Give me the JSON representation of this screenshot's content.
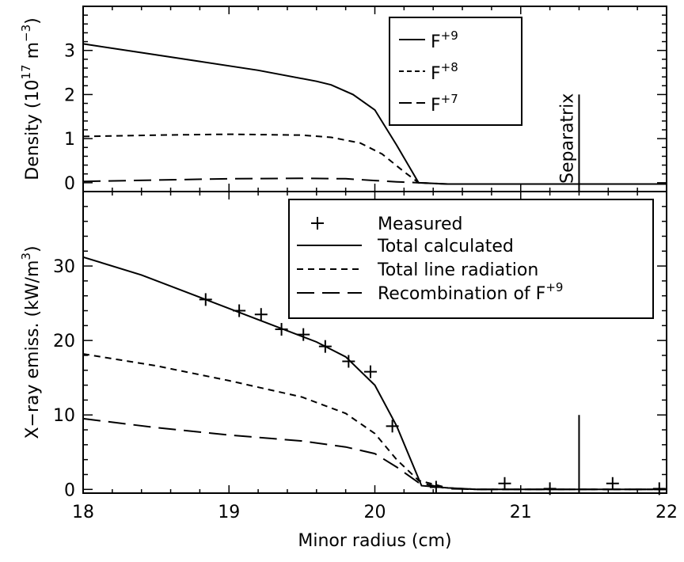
{
  "chart_data": [
    {
      "type": "line",
      "xlim": [
        18,
        22
      ],
      "ylim": [
        -0.2,
        4.0
      ],
      "x_ticks": [
        "18",
        "19",
        "20",
        "21",
        "22"
      ],
      "y_ticks": [
        "0",
        "1",
        "2",
        "3"
      ],
      "y_tick_values": [
        0,
        1,
        2,
        3
      ],
      "ylabel": "Density (10",
      "ylabel_sup": "17",
      "ylabel_unit": " m",
      "ylabel_unit_sup": "−3",
      "ylabel_close": ")",
      "legend_position": "top-right",
      "series": [
        {
          "name": "F",
          "name_sup": "+9",
          "style": "solid",
          "x": [
            18.0,
            18.4,
            18.8,
            19.2,
            19.6,
            19.7,
            19.85,
            20.0,
            20.15,
            20.3,
            20.5,
            21.0,
            22.0
          ],
          "y": [
            3.15,
            2.95,
            2.75,
            2.55,
            2.3,
            2.22,
            2.0,
            1.65,
            0.85,
            0.0,
            -0.03,
            -0.03,
            -0.03
          ]
        },
        {
          "name": "F",
          "name_sup": "+8",
          "style": "dashed",
          "x": [
            18.0,
            18.5,
            19.0,
            19.5,
            19.7,
            19.9,
            20.05,
            20.2,
            20.3,
            20.5,
            22.0
          ],
          "y": [
            1.05,
            1.08,
            1.1,
            1.08,
            1.03,
            0.9,
            0.65,
            0.25,
            0.0,
            -0.03,
            -0.03
          ]
        },
        {
          "name": "F",
          "name_sup": "+7",
          "style": "longdash",
          "x": [
            18.0,
            18.5,
            19.0,
            19.5,
            19.8,
            20.0,
            20.15,
            20.3,
            20.5,
            22.0
          ],
          "y": [
            0.03,
            0.06,
            0.09,
            0.1,
            0.09,
            0.05,
            0.02,
            0.0,
            -0.03,
            -0.03
          ]
        }
      ],
      "separatrix": {
        "x": 21.4,
        "y_top": 2.0,
        "label": "Separatrix"
      }
    },
    {
      "type": "line",
      "xlim": [
        18,
        22
      ],
      "ylim": [
        -0.5,
        40
      ],
      "x_ticks": [
        "18",
        "19",
        "20",
        "21",
        "22"
      ],
      "y_ticks": [
        "0",
        "10",
        "20",
        "30"
      ],
      "y_tick_values": [
        0,
        10,
        20,
        30
      ],
      "xlabel": "Minor radius (cm)",
      "ylabel": "X−ray emiss. (kW/m",
      "ylabel_sup": "3",
      "ylabel_close": ")",
      "legend_position": "top-right",
      "measured": {
        "name": "Measured",
        "x": [
          18.84,
          19.07,
          19.22,
          19.36,
          19.51,
          19.66,
          19.82,
          19.97,
          20.12,
          20.42,
          20.89,
          21.2,
          21.63,
          21.95
        ],
        "y": [
          25.5,
          24.0,
          23.5,
          21.5,
          20.8,
          19.2,
          17.2,
          15.8,
          8.5,
          0.3,
          0.8,
          0.1,
          0.8,
          0.1
        ]
      },
      "series": [
        {
          "name": "Total calculated",
          "style": "solid",
          "x": [
            18.0,
            18.4,
            18.8,
            19.2,
            19.6,
            19.8,
            20.0,
            20.15,
            20.32,
            20.5,
            20.7,
            22.0
          ],
          "y": [
            31.2,
            28.8,
            25.8,
            22.8,
            19.8,
            17.8,
            14.0,
            8.5,
            0.5,
            0.2,
            0.0,
            0.0
          ]
        },
        {
          "name": "Total line radiation",
          "style": "dashed",
          "x": [
            18.0,
            18.5,
            19.0,
            19.5,
            19.8,
            20.0,
            20.15,
            20.3,
            20.5,
            20.7,
            22.0
          ],
          "y": [
            18.2,
            16.6,
            14.6,
            12.4,
            10.2,
            7.5,
            4.0,
            1.2,
            0.2,
            0.0,
            0.0
          ]
        },
        {
          "name": "Recombination of F",
          "name_sup": "+9",
          "style": "longdash",
          "x": [
            18.0,
            18.5,
            19.0,
            19.5,
            19.8,
            20.0,
            20.15,
            20.3,
            20.5,
            20.7,
            22.0
          ],
          "y": [
            9.5,
            8.3,
            7.3,
            6.5,
            5.7,
            4.8,
            3.0,
            0.9,
            0.1,
            0.0,
            0.0
          ]
        }
      ],
      "separatrix": {
        "x": 21.4,
        "y_top": 10.0
      }
    }
  ]
}
